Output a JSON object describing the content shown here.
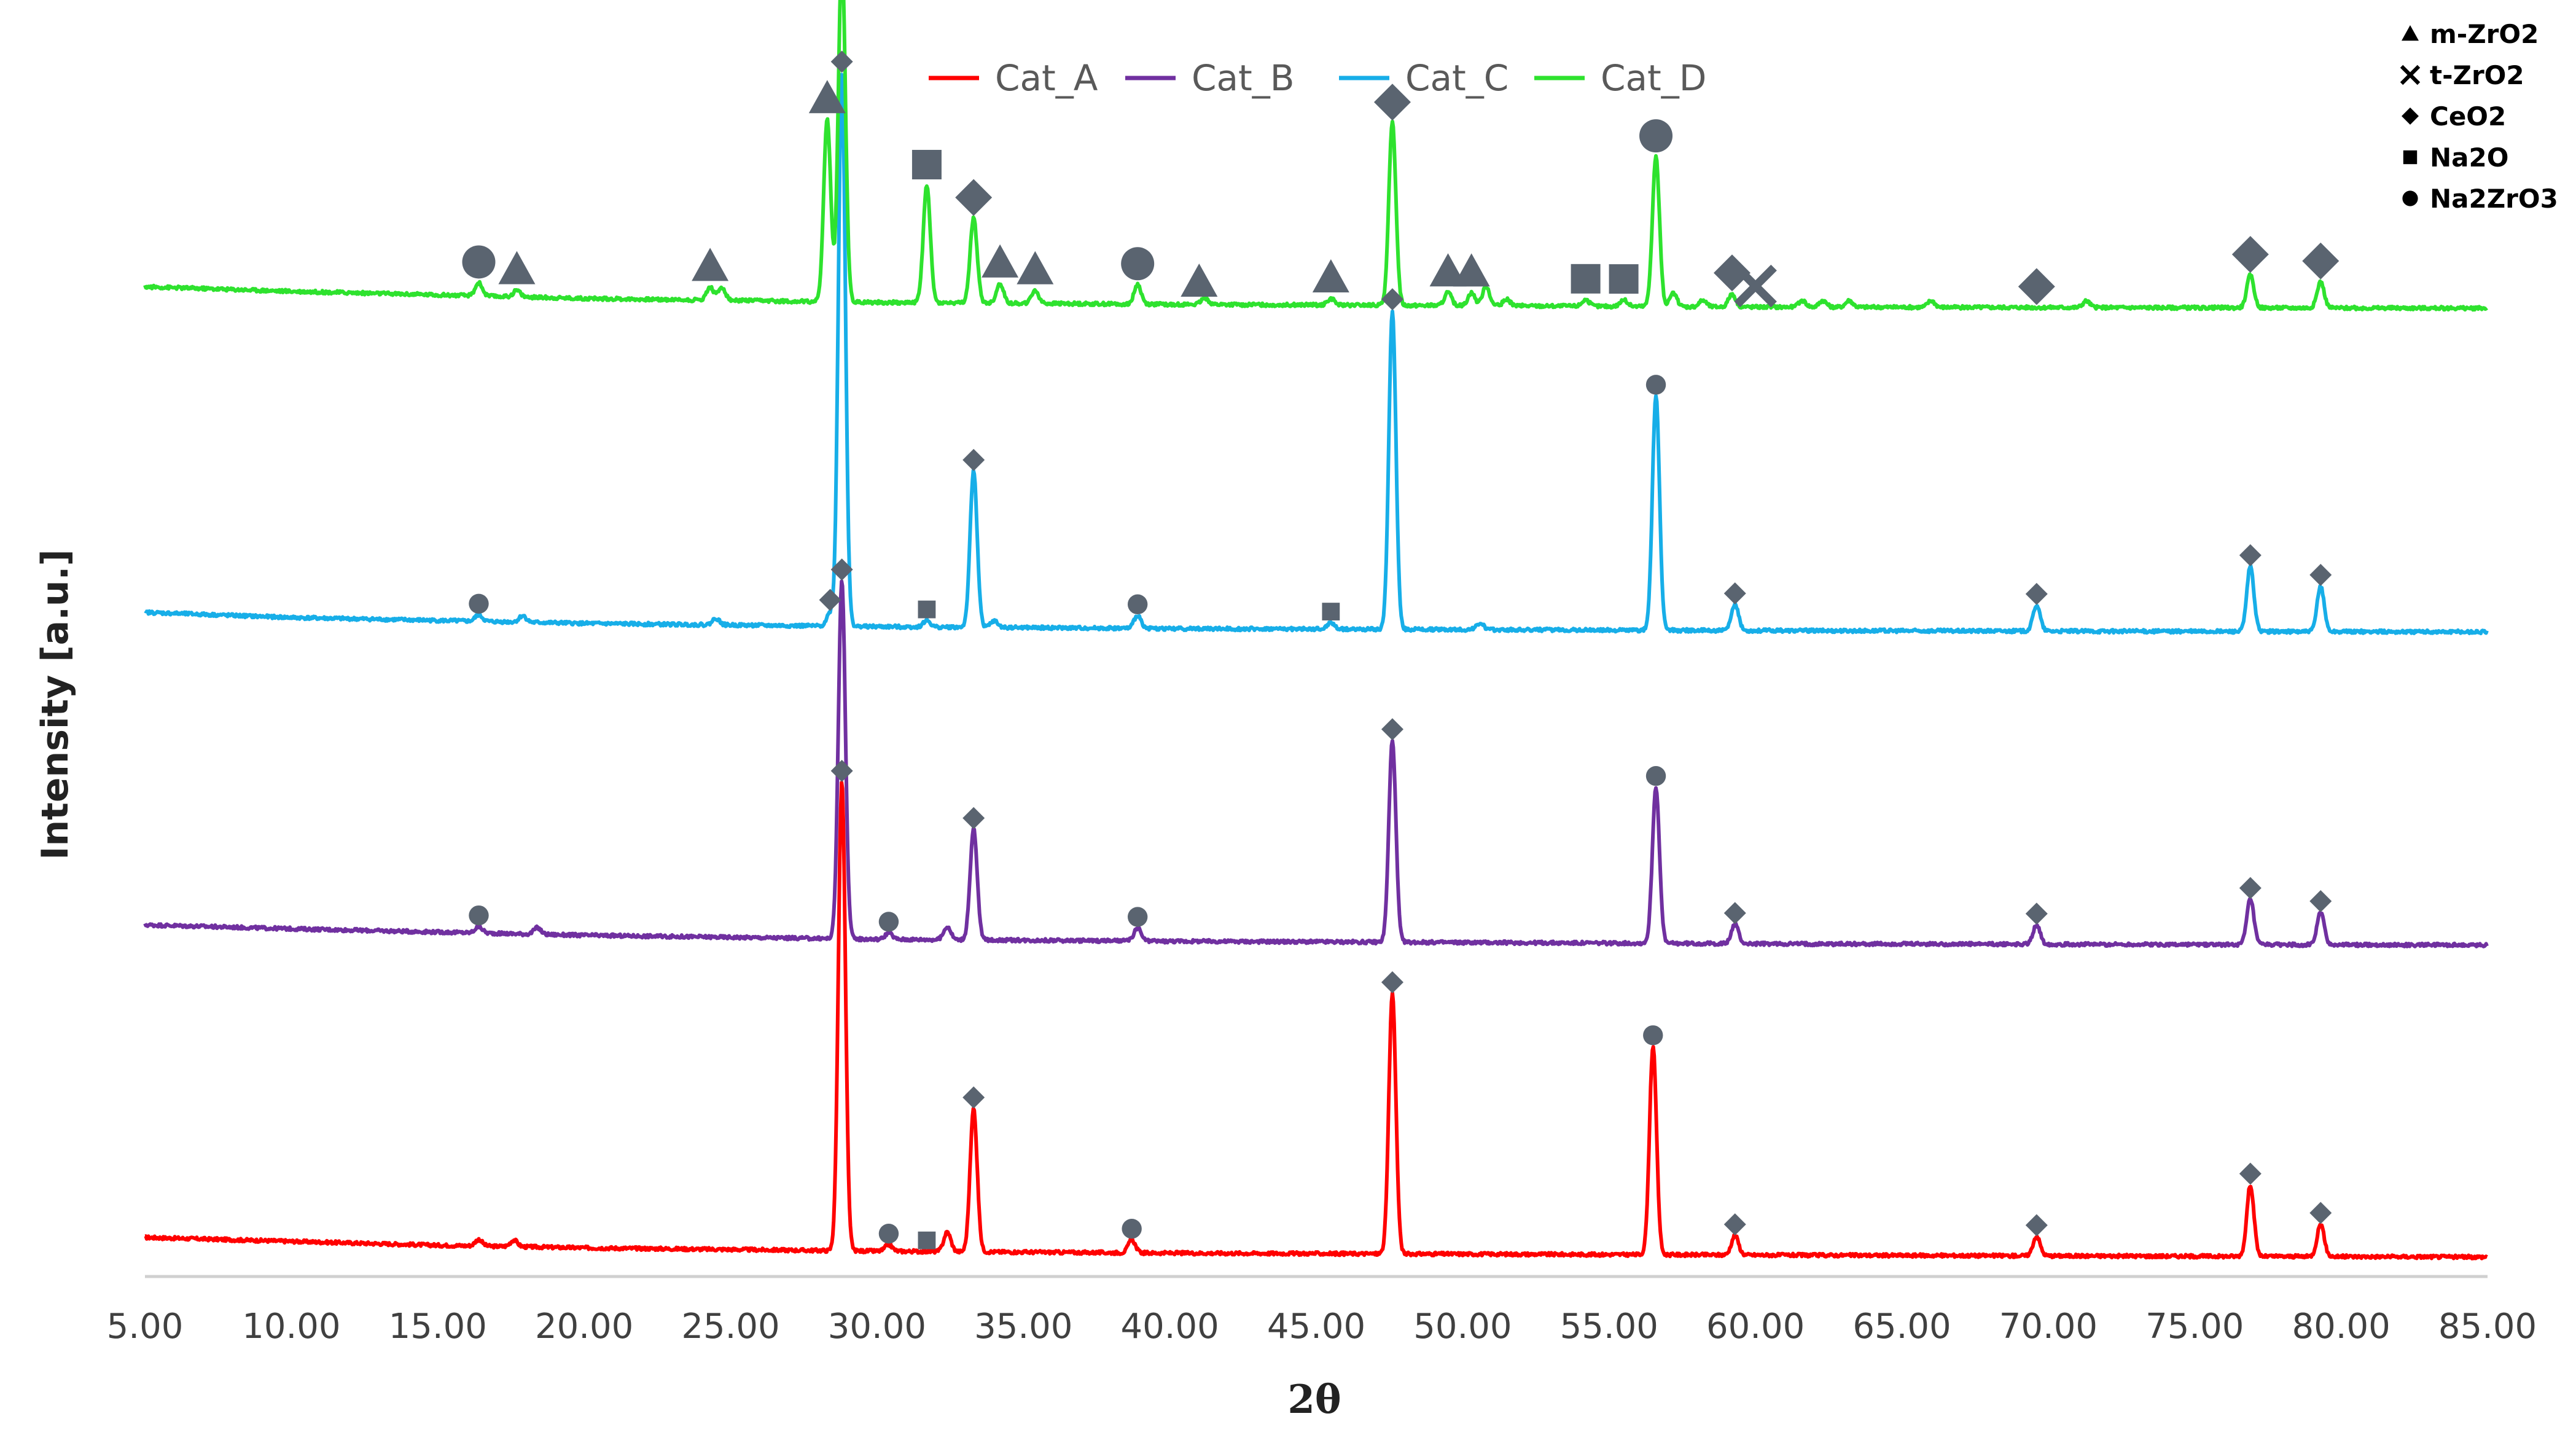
{
  "chart_data": {
    "type": "line",
    "title": "",
    "xlabel": "2θ",
    "ylabel": "Intensity [a.u.]",
    "xlim": [
      5,
      85
    ],
    "xticks": [
      5,
      10,
      15,
      20,
      25,
      30,
      35,
      40,
      45,
      50,
      55,
      60,
      65,
      70,
      75,
      80,
      85
    ],
    "xtick_labels": [
      "5.00",
      "10.00",
      "15.00",
      "20.00",
      "25.00",
      "30.00",
      "35.00",
      "40.00",
      "45.00",
      "50.00",
      "55.00",
      "60.00",
      "65.00",
      "70.00",
      "75.00",
      "80.00",
      "85.00"
    ],
    "ylabel_units": "a.u.",
    "grid": false,
    "legend_position": "top",
    "series": [
      {
        "name": "Cat_A",
        "color": "#ff0000",
        "baseline": [
          [
            5,
            6
          ],
          [
            10,
            5.4
          ],
          [
            15,
            4.8
          ],
          [
            20,
            4.4
          ],
          [
            30,
            3.9
          ],
          [
            40,
            3.6
          ],
          [
            60,
            3.3
          ],
          [
            85,
            3.0
          ]
        ],
        "peaks": [
          [
            16.4,
            1
          ],
          [
            17.6,
            1
          ],
          [
            28.8,
            72
          ],
          [
            30.4,
            1
          ],
          [
            32.4,
            3
          ],
          [
            33.3,
            22
          ],
          [
            38.7,
            2
          ],
          [
            47.6,
            40
          ],
          [
            56.5,
            32
          ],
          [
            59.3,
            3
          ],
          [
            69.6,
            3
          ],
          [
            76.9,
            11
          ],
          [
            79.3,
            5
          ]
        ]
      },
      {
        "name": "Cat_B",
        "color": "#7030a0",
        "baseline": [
          [
            5,
            54
          ],
          [
            10,
            53.4
          ],
          [
            20,
            52.4
          ],
          [
            30,
            51.8
          ],
          [
            40,
            51.5
          ],
          [
            60,
            51.1
          ],
          [
            85,
            50.9
          ]
        ],
        "peaks": [
          [
            16.4,
            1
          ],
          [
            18.4,
            1
          ],
          [
            28.8,
            55
          ],
          [
            30.4,
            1
          ],
          [
            32.4,
            2
          ],
          [
            33.3,
            17
          ],
          [
            38.9,
            2
          ],
          [
            47.6,
            31
          ],
          [
            56.6,
            24
          ],
          [
            59.3,
            3
          ],
          [
            69.6,
            3
          ],
          [
            76.9,
            7
          ],
          [
            79.3,
            5
          ]
        ]
      },
      {
        "name": "Cat_C",
        "color": "#17aee8",
        "baseline": [
          [
            5,
            102
          ],
          [
            10,
            101.2
          ],
          [
            20,
            100.3
          ],
          [
            30,
            99.8
          ],
          [
            40,
            99.5
          ],
          [
            60,
            99.2
          ],
          [
            85,
            99.0
          ]
        ],
        "peaks": [
          [
            16.4,
            1
          ],
          [
            17.9,
            1
          ],
          [
            24.5,
            1
          ],
          [
            28.4,
            2
          ],
          [
            28.8,
            85
          ],
          [
            31.7,
            1
          ],
          [
            33.3,
            24
          ],
          [
            34.0,
            1
          ],
          [
            38.9,
            2
          ],
          [
            45.5,
            1
          ],
          [
            47.6,
            49
          ],
          [
            50.6,
            1
          ],
          [
            56.6,
            36
          ],
          [
            59.3,
            4
          ],
          [
            69.6,
            4
          ],
          [
            76.9,
            10
          ],
          [
            79.3,
            7
          ]
        ]
      },
      {
        "name": "Cat_D",
        "color": "#2ee22e",
        "baseline": [
          [
            5,
            152
          ],
          [
            10,
            151.3
          ],
          [
            20,
            150.2
          ],
          [
            30,
            149.6
          ],
          [
            40,
            149.3
          ],
          [
            60,
            148.9
          ],
          [
            85,
            148.7
          ]
        ],
        "peaks": [
          [
            16.4,
            2
          ],
          [
            17.7,
            1
          ],
          [
            24.3,
            2
          ],
          [
            24.7,
            2
          ],
          [
            28.3,
            28
          ],
          [
            28.8,
            53
          ],
          [
            31.7,
            18
          ],
          [
            33.3,
            13
          ],
          [
            34.2,
            3
          ],
          [
            35.4,
            2
          ],
          [
            38.9,
            3
          ],
          [
            41.2,
            1
          ],
          [
            45.5,
            1
          ],
          [
            47.6,
            28
          ],
          [
            49.5,
            2
          ],
          [
            50.3,
            2
          ],
          [
            50.8,
            3
          ],
          [
            51.5,
            1
          ],
          [
            54.2,
            1
          ],
          [
            55.5,
            1
          ],
          [
            56.6,
            23
          ],
          [
            57.2,
            2
          ],
          [
            58.2,
            1
          ],
          [
            59.2,
            2
          ],
          [
            61.6,
            1
          ],
          [
            62.3,
            1
          ],
          [
            63.2,
            1
          ],
          [
            66.0,
            1
          ],
          [
            71.3,
            1
          ],
          [
            76.9,
            5
          ],
          [
            79.3,
            4
          ]
        ]
      }
    ],
    "phase_legend": [
      {
        "symbol": "triangle",
        "label": "m-ZrO2"
      },
      {
        "symbol": "cross",
        "label": "t-ZrO2"
      },
      {
        "symbol": "diamond",
        "label": "CeO2"
      },
      {
        "symbol": "square",
        "label": "Na2O"
      },
      {
        "symbol": "circle",
        "label": "Na2ZrO3"
      }
    ],
    "marker_color": "#5a6470",
    "phase_markers": [
      {
        "series": "Cat_A",
        "x": 28.8,
        "phase": "diamond"
      },
      {
        "series": "Cat_A",
        "x": 30.4,
        "phase": "circle"
      },
      {
        "series": "Cat_A",
        "x": 31.7,
        "phase": "square"
      },
      {
        "series": "Cat_A",
        "x": 33.3,
        "phase": "diamond"
      },
      {
        "series": "Cat_A",
        "x": 38.7,
        "phase": "circle"
      },
      {
        "series": "Cat_A",
        "x": 47.6,
        "phase": "diamond"
      },
      {
        "series": "Cat_A",
        "x": 56.5,
        "phase": "circle"
      },
      {
        "series": "Cat_A",
        "x": 59.3,
        "phase": "diamond"
      },
      {
        "series": "Cat_A",
        "x": 69.6,
        "phase": "diamond"
      },
      {
        "series": "Cat_A",
        "x": 76.9,
        "phase": "diamond"
      },
      {
        "series": "Cat_A",
        "x": 79.3,
        "phase": "diamond"
      },
      {
        "series": "Cat_B",
        "x": 16.4,
        "phase": "circle"
      },
      {
        "series": "Cat_B",
        "x": 28.8,
        "phase": "diamond"
      },
      {
        "series": "Cat_B",
        "x": 30.4,
        "phase": "circle"
      },
      {
        "series": "Cat_B",
        "x": 33.3,
        "phase": "diamond"
      },
      {
        "series": "Cat_B",
        "x": 38.9,
        "phase": "circle"
      },
      {
        "series": "Cat_B",
        "x": 47.6,
        "phase": "diamond"
      },
      {
        "series": "Cat_B",
        "x": 56.6,
        "phase": "circle"
      },
      {
        "series": "Cat_B",
        "x": 59.3,
        "phase": "diamond"
      },
      {
        "series": "Cat_B",
        "x": 69.6,
        "phase": "diamond"
      },
      {
        "series": "Cat_B",
        "x": 76.9,
        "phase": "diamond"
      },
      {
        "series": "Cat_B",
        "x": 79.3,
        "phase": "diamond"
      },
      {
        "series": "Cat_C",
        "x": 16.4,
        "phase": "circle"
      },
      {
        "series": "Cat_C",
        "x": 28.4,
        "phase": "diamond"
      },
      {
        "series": "Cat_C",
        "x": 28.8,
        "phase": "diamond"
      },
      {
        "series": "Cat_C",
        "x": 31.7,
        "phase": "square"
      },
      {
        "series": "Cat_C",
        "x": 33.3,
        "phase": "diamond"
      },
      {
        "series": "Cat_C",
        "x": 38.9,
        "phase": "circle"
      },
      {
        "series": "Cat_C",
        "x": 45.5,
        "phase": "square"
      },
      {
        "series": "Cat_C",
        "x": 47.6,
        "phase": "diamond"
      },
      {
        "series": "Cat_C",
        "x": 56.6,
        "phase": "circle"
      },
      {
        "series": "Cat_C",
        "x": 59.3,
        "phase": "diamond"
      },
      {
        "series": "Cat_C",
        "x": 69.6,
        "phase": "diamond"
      },
      {
        "series": "Cat_C",
        "x": 76.9,
        "phase": "diamond"
      },
      {
        "series": "Cat_C",
        "x": 79.3,
        "phase": "diamond"
      },
      {
        "series": "Cat_D",
        "x": 16.4,
        "phase": "circle"
      },
      {
        "series": "Cat_D",
        "x": 17.7,
        "phase": "triangle"
      },
      {
        "series": "Cat_D",
        "x": 24.3,
        "phase": "triangle"
      },
      {
        "series": "Cat_D",
        "x": 28.3,
        "phase": "triangle"
      },
      {
        "series": "Cat_D",
        "x": 28.8,
        "phase": "diamond"
      },
      {
        "series": "Cat_D",
        "x": 31.7,
        "phase": "square"
      },
      {
        "series": "Cat_D",
        "x": 33.3,
        "phase": "diamond"
      },
      {
        "series": "Cat_D",
        "x": 34.2,
        "phase": "triangle"
      },
      {
        "series": "Cat_D",
        "x": 35.4,
        "phase": "triangle"
      },
      {
        "series": "Cat_D",
        "x": 38.9,
        "phase": "circle"
      },
      {
        "series": "Cat_D",
        "x": 41.0,
        "phase": "triangle"
      },
      {
        "series": "Cat_D",
        "x": 45.5,
        "phase": "triangle"
      },
      {
        "series": "Cat_D",
        "x": 47.6,
        "phase": "diamond"
      },
      {
        "series": "Cat_D",
        "x": 49.5,
        "phase": "triangle"
      },
      {
        "series": "Cat_D",
        "x": 50.3,
        "phase": "triangle"
      },
      {
        "series": "Cat_D",
        "x": 54.2,
        "phase": "square"
      },
      {
        "series": "Cat_D",
        "x": 55.5,
        "phase": "square"
      },
      {
        "series": "Cat_D",
        "x": 56.6,
        "phase": "circle"
      },
      {
        "series": "Cat_D",
        "x": 59.2,
        "phase": "diamond"
      },
      {
        "series": "Cat_D",
        "x": 60.0,
        "phase": "cross"
      },
      {
        "series": "Cat_D",
        "x": 69.6,
        "phase": "diamond"
      },
      {
        "series": "Cat_D",
        "x": 76.9,
        "phase": "diamond"
      },
      {
        "series": "Cat_D",
        "x": 79.3,
        "phase": "diamond"
      }
    ]
  }
}
